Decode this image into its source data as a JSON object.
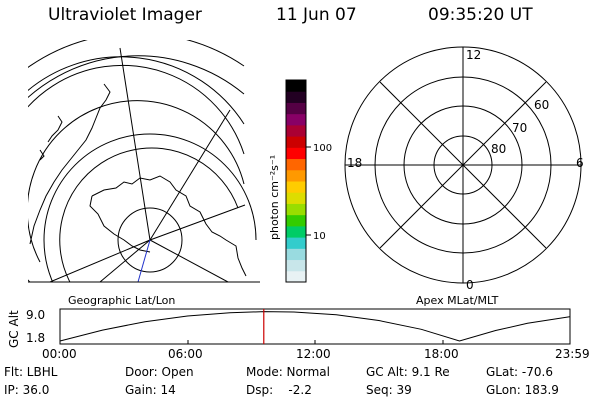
{
  "header": {
    "instrument": "Ultraviolet Imager",
    "date": "11 Jun 07",
    "time": "09:35:20 UT"
  },
  "left_map": {
    "caption": "Geographic Lat/Lon"
  },
  "polar_plot": {
    "caption": "Apex MLat/MLT",
    "mlt_labels": [
      "12",
      "18",
      "6",
      "0"
    ],
    "lat_labels": [
      "60",
      "70",
      "80"
    ]
  },
  "colorbar": {
    "unit_label": "photon cm⁻²s⁻¹",
    "tick_labels": [
      "100",
      "10"
    ],
    "colors": [
      "#e8f2f4",
      "#c8e6ea",
      "#99dbe0",
      "#33cccc",
      "#00cc66",
      "#33cc00",
      "#99dd00",
      "#dddd00",
      "#ffcc00",
      "#ff9900",
      "#ff6600",
      "#ff0000",
      "#cc0000",
      "#aa0033",
      "#880066",
      "#550044",
      "#220022",
      "#000000"
    ]
  },
  "timeline": {
    "ylabel": "GC Alt",
    "y_ticks": [
      "9.0",
      "1.8"
    ],
    "x_ticks": [
      "00:00",
      "06:00",
      "12:00",
      "18:00",
      "23:59"
    ],
    "current_time_color": "#cc0000"
  },
  "chart_data": {
    "type": "line",
    "title": "GC Alt",
    "xlabel": "",
    "ylabel": "GC Alt",
    "x": [
      0,
      2,
      4,
      6,
      8,
      9.59,
      11,
      13,
      15,
      17,
      18.8,
      20.5,
      22,
      23.98
    ],
    "values": [
      1.8,
      4.5,
      6.6,
      8.0,
      8.8,
      9.1,
      9.0,
      8.3,
      6.9,
      4.7,
      1.8,
      4.4,
      6.2,
      7.8
    ],
    "xlim": [
      0,
      24
    ],
    "ylim": [
      1.8,
      9.0
    ],
    "current_time": 9.59
  },
  "status": {
    "filter": "Flt: LBHL",
    "door": "Door: Open",
    "mode": "Mode: Normal",
    "gc_alt": "GC Alt: 9.1 Re",
    "glat": "GLat: -70.6",
    "ip": "IP: 36.0",
    "gain": "Gain: 14",
    "dsp": "Dsp:    -2.2",
    "seq": "Seq: 39",
    "glon": "GLon: 183.9"
  }
}
